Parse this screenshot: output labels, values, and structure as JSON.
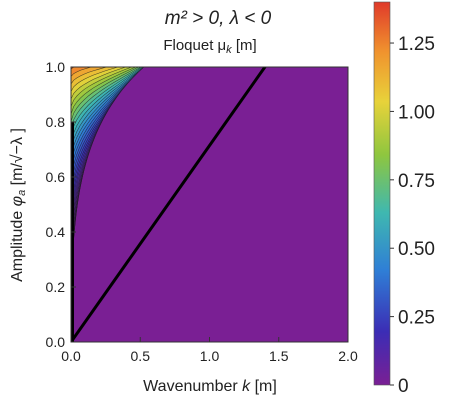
{
  "chart_data": {
    "type": "heatmap",
    "title": "m² > 0,  λ < 0",
    "subtitle": "Floquet  μ",
    "subtitle_sub": "k",
    "subtitle_unit": " [m]",
    "xlabel": "Wavenumber ",
    "xlabel_var": "k",
    "xlabel_unit": " [m]",
    "ylabel": "Amplitude  ",
    "ylabel_var": "φ",
    "ylabel_sub": "a",
    "ylabel_unit": " [m/√−λ ]",
    "xlim": [
      0,
      2.0
    ],
    "ylim": [
      0,
      1.0
    ],
    "x_ticks": [
      {
        "value": 0.0,
        "label": "0.0"
      },
      {
        "value": 0.5,
        "label": "0.5"
      },
      {
        "value": 1.0,
        "label": "1.0"
      },
      {
        "value": 1.5,
        "label": "1.5"
      },
      {
        "value": 2.0,
        "label": "2.0"
      }
    ],
    "y_ticks": [
      {
        "value": 0.0,
        "label": "0.0"
      },
      {
        "value": 0.2,
        "label": "0.2"
      },
      {
        "value": 0.4,
        "label": "0.4"
      },
      {
        "value": 0.6,
        "label": "0.6"
      },
      {
        "value": 0.8,
        "label": "0.8"
      },
      {
        "value": 1.0,
        "label": "1.0"
      }
    ],
    "colorbar": {
      "range": [
        0,
        1.4
      ],
      "ticks": [
        {
          "value": 0,
          "label": "0"
        },
        {
          "value": 0.25,
          "label": "0.25"
        },
        {
          "value": 0.5,
          "label": "0.50"
        },
        {
          "value": 0.75,
          "label": "0.75"
        },
        {
          "value": 1.0,
          "label": "1.00"
        },
        {
          "value": 1.25,
          "label": "1.25"
        }
      ],
      "colors": [
        "#7a1f94",
        "#3b2db5",
        "#2f7fd6",
        "#3fb8b0",
        "#8ec63f",
        "#e8d23a",
        "#f0932e",
        "#e03a2a"
      ]
    },
    "band_boundary": {
      "slope_dk_dphi": 1.4
    },
    "instability_peak": {
      "phi": 1.0,
      "k": 0.05,
      "mu": 1.4
    },
    "grid": false,
    "legend": "right colorbar"
  }
}
